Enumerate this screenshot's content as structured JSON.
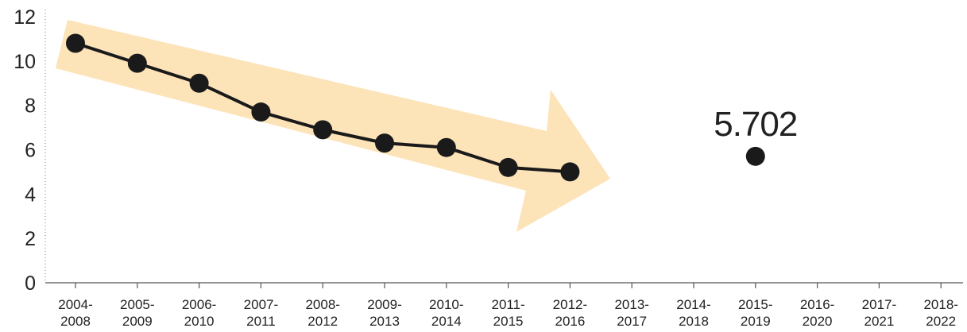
{
  "chart_data": {
    "type": "line",
    "title": "",
    "xlabel": "",
    "ylabel": "",
    "ylim": [
      0,
      12
    ],
    "yticks": [
      "0",
      "2",
      "4",
      "6",
      "8",
      "10",
      "12"
    ],
    "categories": [
      "2004-2008",
      "2005-2009",
      "2006-2010",
      "2007-2011",
      "2008-2012",
      "2009-2013",
      "2010-2014",
      "2011-2015",
      "2012-2016",
      "2013-2017",
      "2014-2018",
      "2015-2019",
      "2016-2020",
      "2017-2021",
      "2018-2022"
    ],
    "category_lines": [
      [
        "2004-",
        "2008"
      ],
      [
        "2005-",
        "2009"
      ],
      [
        "2006-",
        "2010"
      ],
      [
        "2007-",
        "2011"
      ],
      [
        "2008-",
        "2012"
      ],
      [
        "2009-",
        "2013"
      ],
      [
        "2010-",
        "2014"
      ],
      [
        "2011-",
        "2015"
      ],
      [
        "2012-",
        "2016"
      ],
      [
        "2013-",
        "2017"
      ],
      [
        "2014-",
        "2018"
      ],
      [
        "2015-",
        "2019"
      ],
      [
        "2016-",
        "2020"
      ],
      [
        "2017-",
        "2021"
      ],
      [
        "2018-",
        "2022"
      ]
    ],
    "series": [
      {
        "values": [
          10.8,
          9.9,
          9.0,
          7.7,
          6.9,
          6.3,
          6.1,
          5.2,
          5.0,
          null,
          null,
          null,
          null,
          null,
          null
        ],
        "connected": true
      },
      {
        "values": [
          null,
          null,
          null,
          null,
          null,
          null,
          null,
          null,
          null,
          null,
          null,
          5.702,
          null,
          null,
          null
        ],
        "connected": false,
        "data_label": "5.702"
      }
    ],
    "colors": {
      "line": "#1a1a1a",
      "marker": "#1a1a1a",
      "trend_arrow": "#fde3b8",
      "axis": "#555555"
    },
    "annotation": "downward trend arrow behind first series",
    "grid": false
  }
}
